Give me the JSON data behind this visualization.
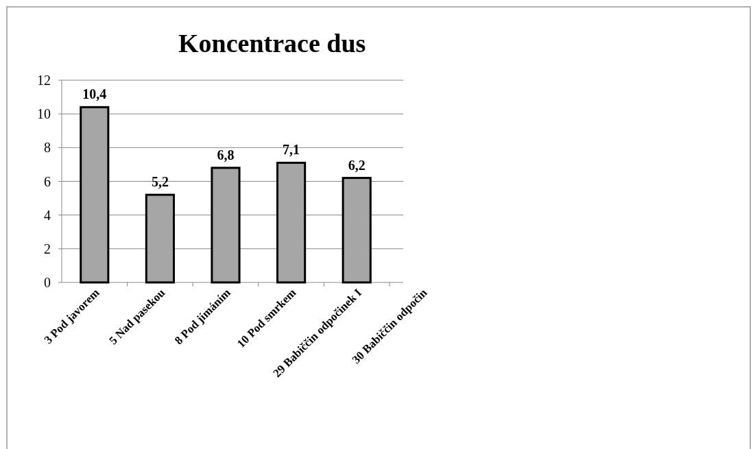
{
  "chart_data": {
    "type": "bar",
    "title": "Koncentrace dus",
    "categories": [
      "3 Pod javorem",
      "5 Nad pasekou",
      "8 Pod jímáním",
      "10 Pod smrkem",
      "29 Babiččin odpočinek I",
      "30 Babiččin odpočin"
    ],
    "values": [
      10.4,
      5.2,
      6.8,
      7.1,
      6.2,
      null
    ],
    "color": "#a6a6a6",
    "ylim": [
      0,
      12
    ],
    "yticks": [
      0,
      2,
      4,
      6,
      8,
      10,
      12
    ],
    "grid": "y",
    "value_labels": [
      "10,4",
      "5,2",
      "6,8",
      "7,1",
      "6,2",
      null
    ]
  }
}
